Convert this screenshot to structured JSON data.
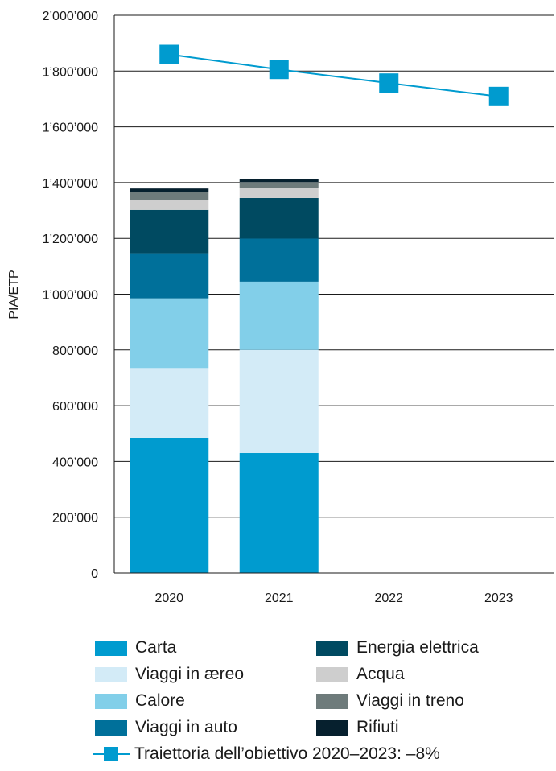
{
  "chart_data": {
    "type": "bar",
    "stacked": true,
    "categories": [
      "2020",
      "2021",
      "2022",
      "2023"
    ],
    "ylabel": "PIA/ETP",
    "ylim": [
      0,
      2000000
    ],
    "yticks": [
      0,
      200000,
      400000,
      600000,
      800000,
      1000000,
      1200000,
      1400000,
      1600000,
      1800000,
      2000000
    ],
    "ytick_labels": [
      "0",
      "200’000",
      "400’000",
      "600’000",
      "800’000",
      "1’000’000",
      "1’200’000",
      "1’400’000",
      "1’600’000",
      "1’800’000",
      "2’000’000"
    ],
    "grid": true,
    "legend_position": "bottom",
    "series": [
      {
        "name": "Carta",
        "color": "#009bcf",
        "values": [
          485000,
          430000,
          null,
          null
        ]
      },
      {
        "name": "Viaggi in æreo",
        "color": "#d3ebf7",
        "values": [
          250000,
          370000,
          null,
          null
        ]
      },
      {
        "name": "Calore",
        "color": "#82cfe9",
        "values": [
          250000,
          245000,
          null,
          null
        ]
      },
      {
        "name": "Viaggi in auto",
        "color": "#00709a",
        "values": [
          162000,
          155000,
          null,
          null
        ]
      },
      {
        "name": "Energia elettrica",
        "color": "#004a61",
        "values": [
          155000,
          145000,
          null,
          null
        ]
      },
      {
        "name": "Acqua",
        "color": "#cecece",
        "values": [
          37000,
          35000,
          null,
          null
        ]
      },
      {
        "name": "Viaggi in treno",
        "color": "#6e7b7b",
        "values": [
          28000,
          22000,
          null,
          null
        ]
      },
      {
        "name": "Rifiuti",
        "color": "#06202e",
        "values": [
          12000,
          12000,
          null,
          null
        ]
      }
    ],
    "target_line": {
      "name": "Traiettoria dell’obiettivo 2020–2023: –8%",
      "color": "#009bcf",
      "values": [
        1860000,
        1806000,
        1757000,
        1709000
      ]
    }
  }
}
